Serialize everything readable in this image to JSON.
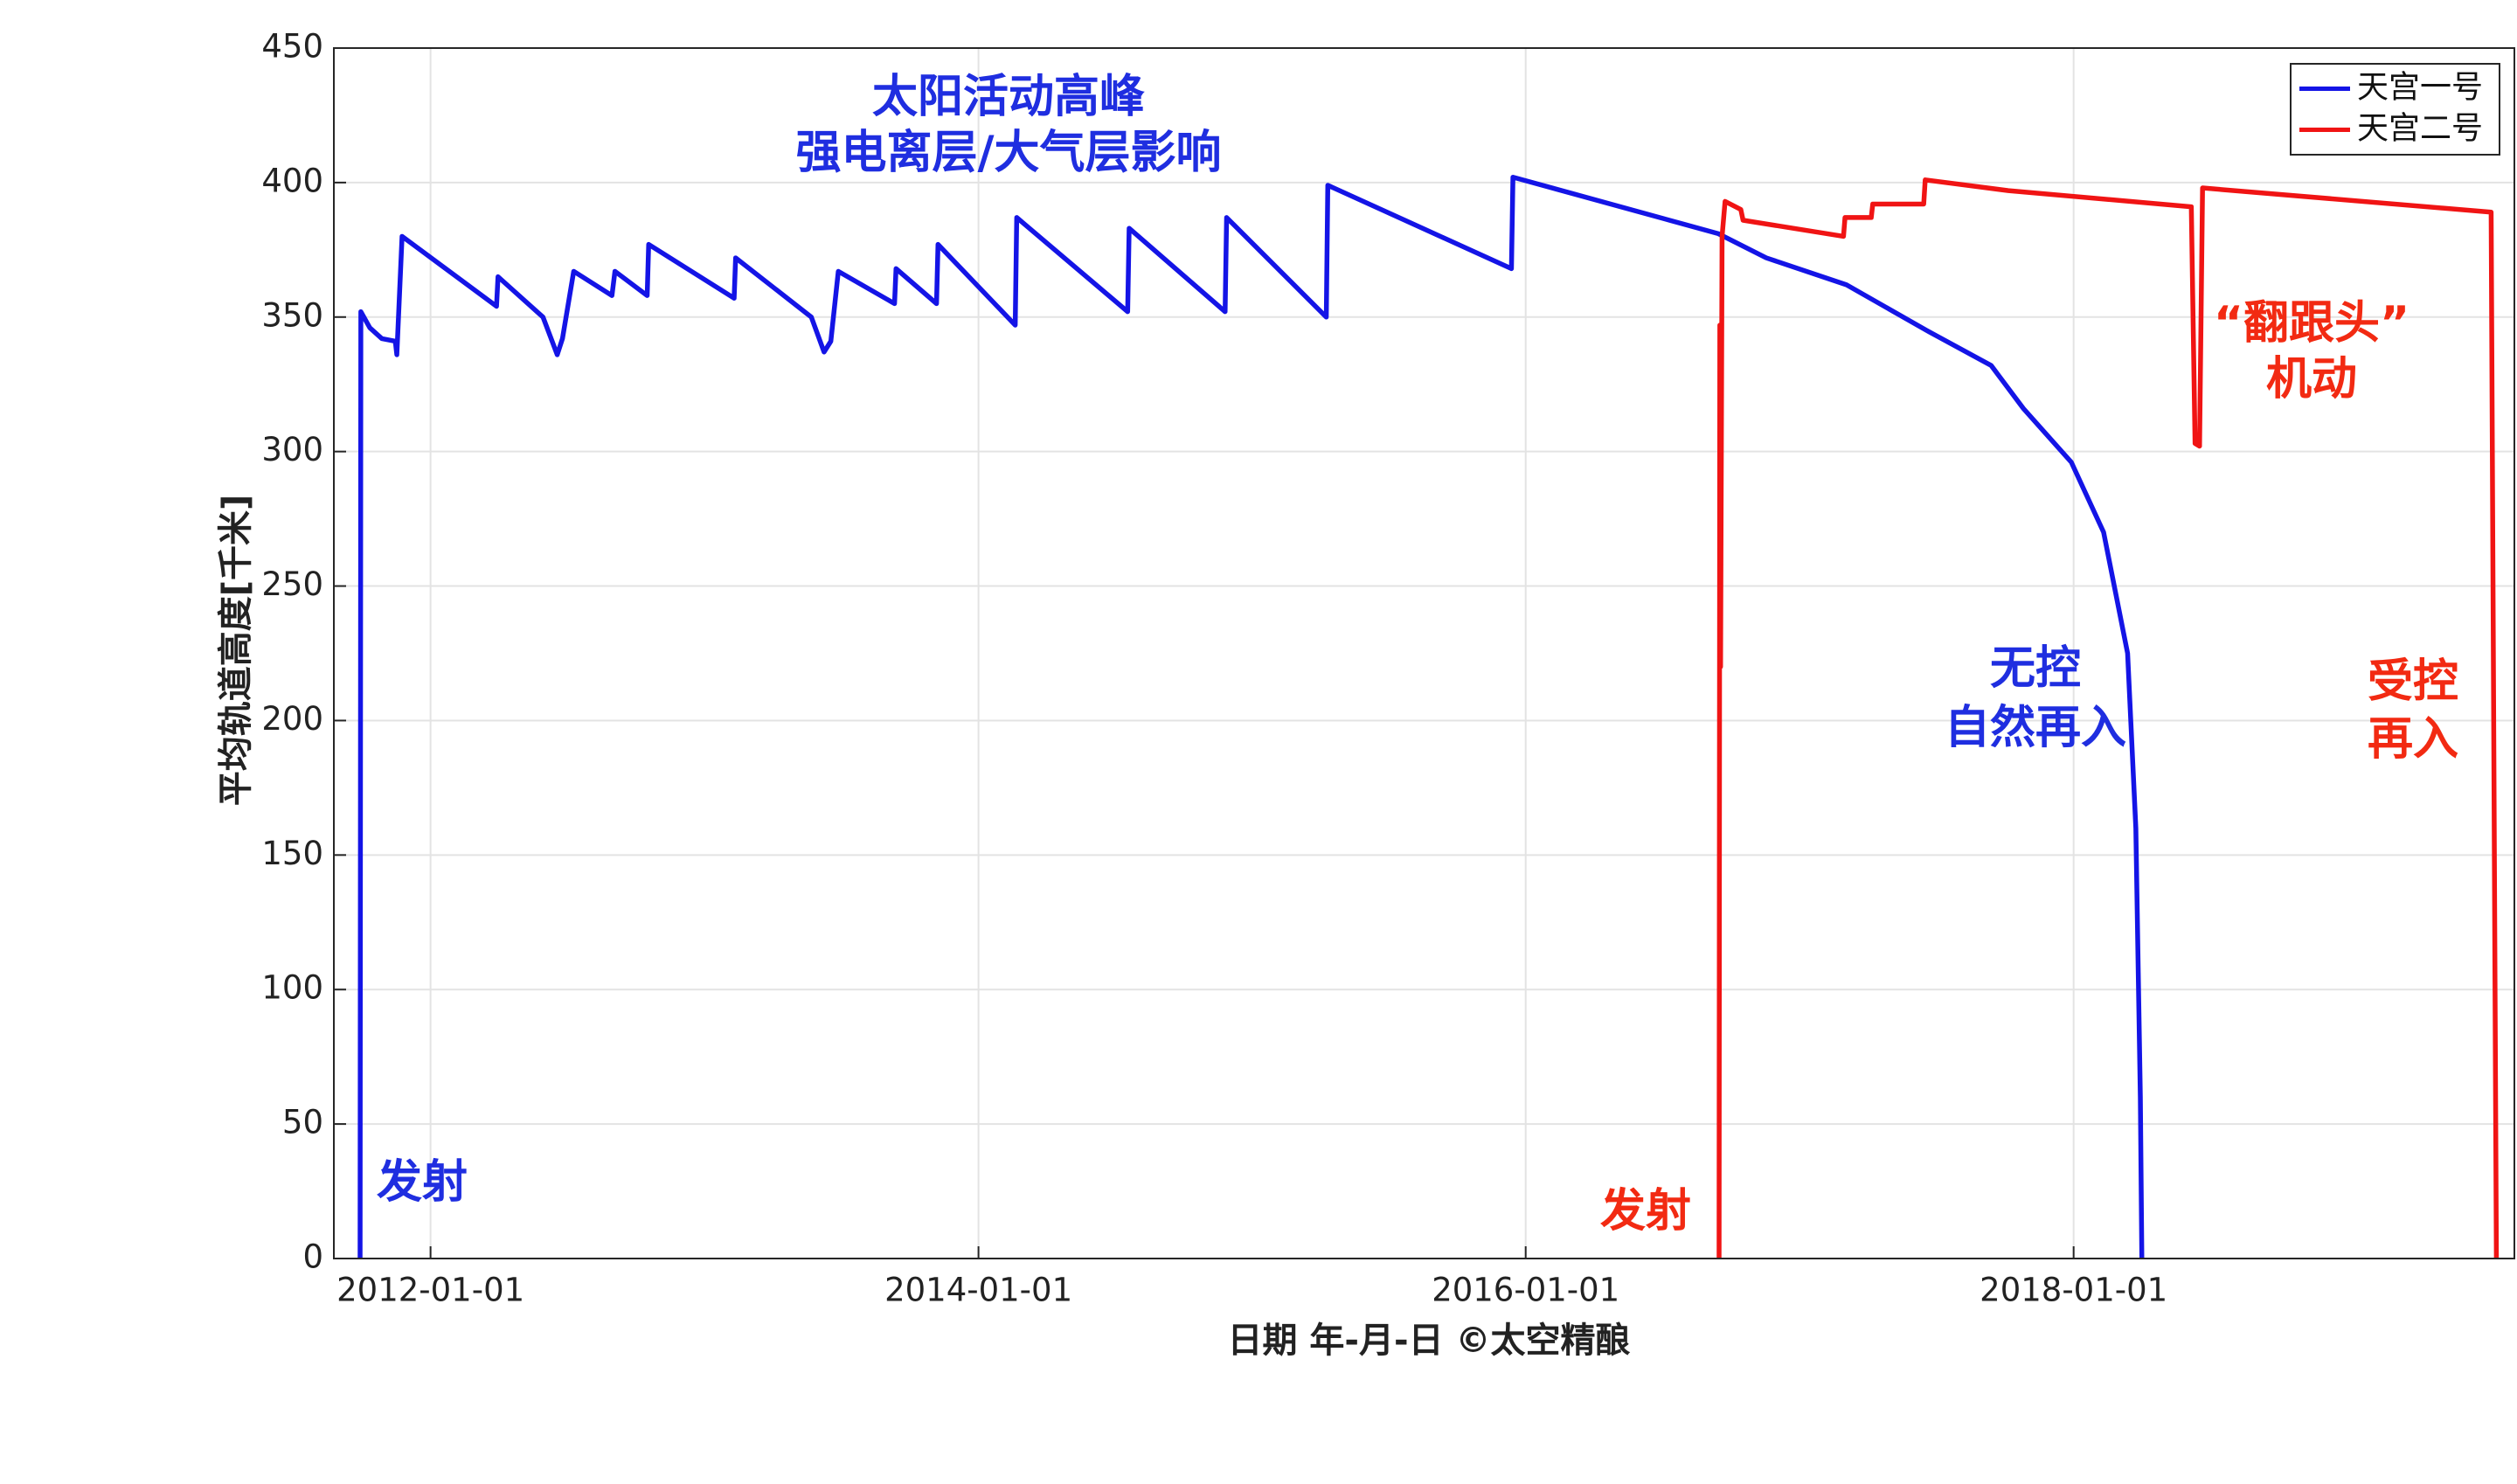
{
  "chart_data": {
    "type": "line",
    "ylabel": "平均轨道高度[千米]",
    "xlabel": "日期 年-月-日  ©太空精酿",
    "xlim": [
      "2011-08-25",
      "2019-08-12"
    ],
    "xticks": [
      "2012-01-01",
      "2014-01-01",
      "2016-01-01",
      "2018-01-01"
    ],
    "ylim": [
      0,
      450
    ],
    "yticks": [
      0,
      50,
      100,
      150,
      200,
      250,
      300,
      350,
      400,
      450
    ],
    "grid": true,
    "legend": "upper right",
    "annotations": [
      "太阳活动高峰",
      "强电离层/大气层影响",
      "发射",
      "发射",
      "无控",
      "自然再入",
      "“翻跟头”",
      "机动",
      "受控",
      "再入"
    ],
    "series": [
      {
        "name": "天宫一号",
        "color": "#1414e6",
        "x": [
          "2011-09-29",
          "2011-09-30",
          "2011-10-12",
          "2011-10-28",
          "2011-11-15",
          "2011-11-17",
          "2011-11-24",
          "2012-03-29",
          "2012-03-31",
          "2012-05-30",
          "2012-06-18",
          "2012-06-25",
          "2012-07-10",
          "2012-08-30",
          "2012-09-03",
          "2012-10-16",
          "2012-10-18",
          "2013-02-09",
          "2013-02-11",
          "2013-05-23",
          "2013-06-09",
          "2013-06-18",
          "2013-06-28",
          "2013-09-11",
          "2013-09-13",
          "2013-11-06",
          "2013-11-08",
          "2014-02-19",
          "2014-02-21",
          "2014-07-19",
          "2014-07-21",
          "2014-11-26",
          "2014-11-28",
          "2015-04-10",
          "2015-04-12",
          "2015-12-13",
          "2015-12-15",
          "2016-09-14",
          "2016-11-17",
          "2017-03-04",
          "2017-06-19",
          "2017-09-13",
          "2017-10-26",
          "2017-12-29",
          "2018-02-10",
          "2018-03-14",
          "2018-03-25",
          "2018-03-31",
          "2018-04-02"
        ],
        "values": [
          0,
          352,
          346,
          342,
          341,
          336,
          380,
          354,
          365,
          350,
          336,
          342,
          367,
          358,
          367,
          358,
          377,
          357,
          372,
          350,
          337,
          341,
          367,
          355,
          368,
          355,
          377,
          347,
          387,
          352,
          383,
          352,
          387,
          350,
          399,
          368,
          402,
          381,
          372,
          362,
          345,
          332,
          316,
          296,
          270,
          225,
          160,
          60,
          0
        ]
      },
      {
        "name": "天宫二号",
        "color": "#f01414",
        "x": [
          "2016-09-15",
          "2016-09-16",
          "2016-09-17",
          "2016-09-19",
          "2016-09-23",
          "2016-10-14",
          "2016-10-17",
          "2017-02-28",
          "2017-03-02",
          "2017-04-06",
          "2017-04-08",
          "2017-06-15",
          "2017-06-17",
          "2017-10-06",
          "2018-06-07",
          "2018-06-12",
          "2018-06-18",
          "2018-06-22",
          "2019-07-12",
          "2019-07-19"
        ],
        "values": [
          0,
          347,
          220,
          380,
          393,
          390,
          386,
          380,
          387,
          387,
          392,
          392,
          401,
          397,
          391,
          303,
          302,
          398,
          389,
          0
        ]
      }
    ]
  }
}
